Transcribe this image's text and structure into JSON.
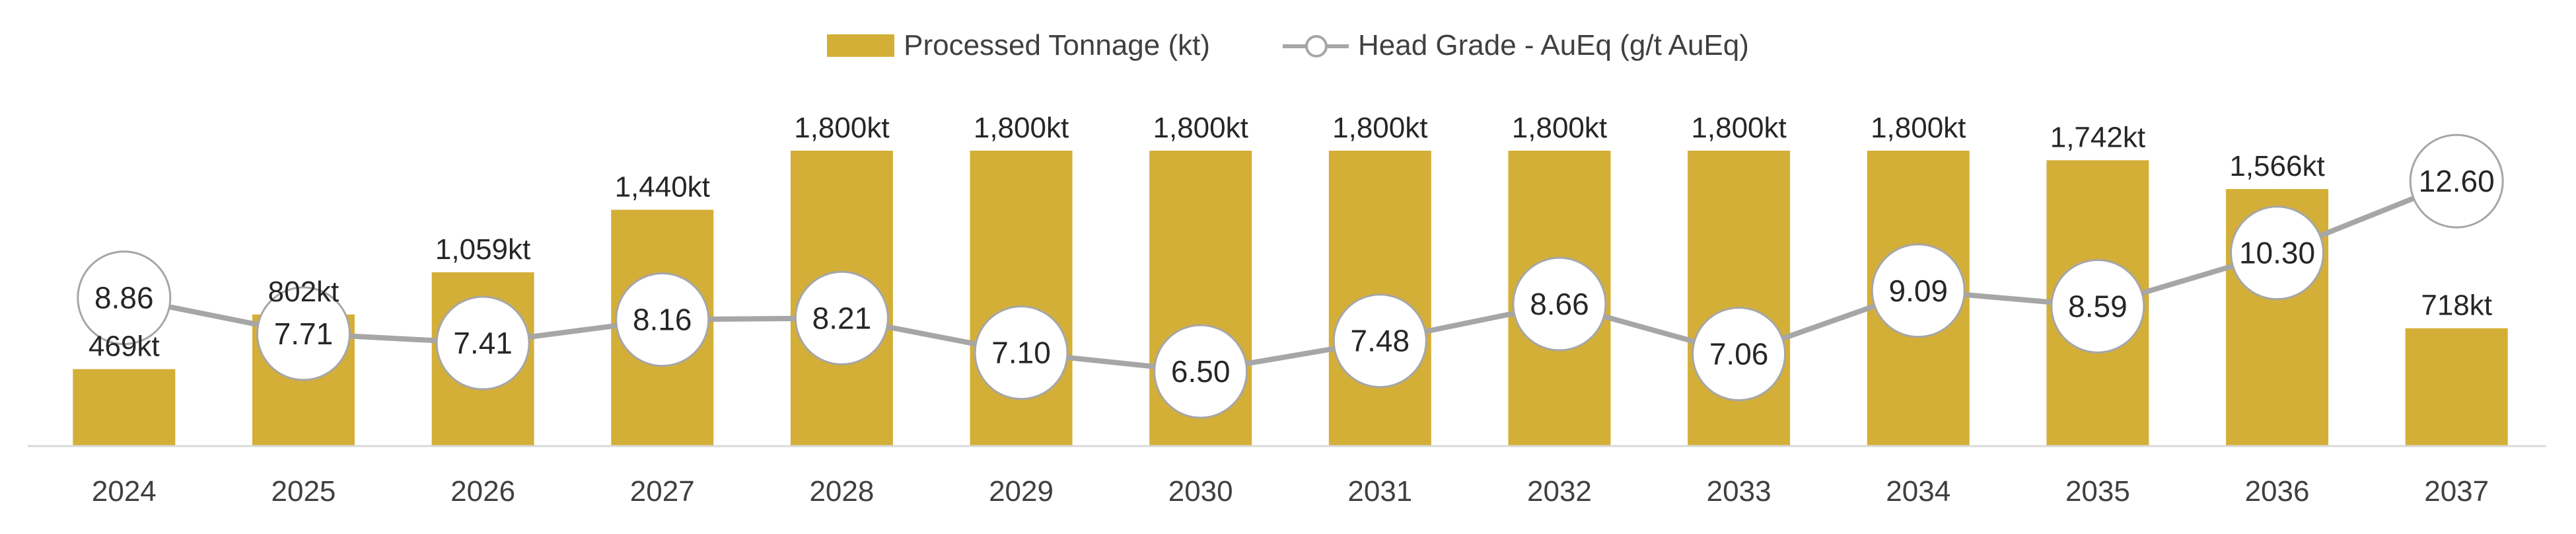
{
  "legend": {
    "bar_label": "Processed Tonnage (kt)",
    "line_label": "Head Grade - AuEq (g/t AuEq)"
  },
  "colors": {
    "bar": "#D4AF37",
    "line": "#A6A6A6",
    "marker_fill": "#FFFFFF",
    "text": "#262626",
    "axis": "#D9D9D9"
  },
  "chart_data": {
    "type": "bar",
    "title": "",
    "xlabel": "",
    "ylabel": "",
    "grid": false,
    "legend_position": "top-center",
    "categories": [
      "2024",
      "2025",
      "2026",
      "2027",
      "2028",
      "2029",
      "2030",
      "2031",
      "2032",
      "2033",
      "2034",
      "2035",
      "2036",
      "2037"
    ],
    "series": [
      {
        "name": "Processed Tonnage (kt)",
        "type": "bar",
        "values": [
          469,
          802,
          1059,
          1440,
          1800,
          1800,
          1800,
          1800,
          1800,
          1800,
          1800,
          1742,
          1566,
          718
        ],
        "labels": [
          "469kt",
          "802kt",
          "1,059kt",
          "1,440kt",
          "1,800kt",
          "1,800kt",
          "1,800kt",
          "1,800kt",
          "1,800kt",
          "1,800kt",
          "1,800kt",
          "1,742kt",
          "1,566kt",
          "718kt"
        ]
      },
      {
        "name": "Head Grade - AuEq (g/t AuEq)",
        "type": "line",
        "values": [
          8.86,
          7.71,
          7.41,
          8.16,
          8.21,
          7.1,
          6.5,
          7.48,
          8.66,
          7.06,
          9.09,
          8.59,
          10.3,
          12.6
        ],
        "labels": [
          "8.86",
          "7.71",
          "7.41",
          "8.16",
          "8.21",
          "7.10",
          "6.50",
          "7.48",
          "8.66",
          "7.06",
          "9.09",
          "8.59",
          "10.30",
          "12.60"
        ]
      }
    ],
    "y_bar_range": [
      0,
      1800
    ],
    "y_line_range": [
      4.0,
      14.0
    ]
  }
}
